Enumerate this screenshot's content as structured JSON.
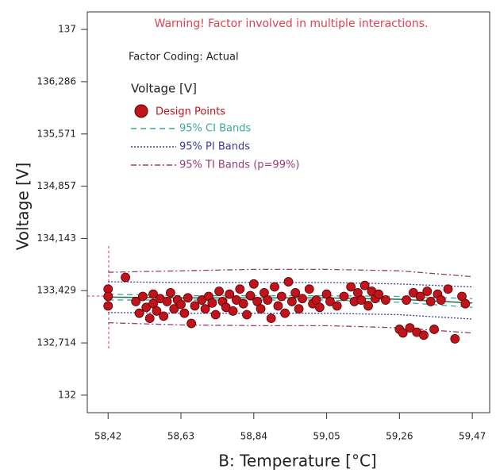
{
  "chart_data": {
    "type": "scatter",
    "warning": "Warning! Factor involved in multiple interactions.",
    "coding": "Factor Coding: Actual",
    "legend_title": "Voltage [V]",
    "x_label": "B: Temperature [°C]",
    "y_label": "Voltage [V]",
    "xlim": [
      58.36,
      59.52
    ],
    "ylim": [
      131.76,
      137.24
    ],
    "xticks": [
      {
        "value": 58.42,
        "label": "58,42"
      },
      {
        "value": 58.63,
        "label": "58,63"
      },
      {
        "value": 58.84,
        "label": "58,84"
      },
      {
        "value": 59.05,
        "label": "59,05"
      },
      {
        "value": 59.26,
        "label": "59,26"
      },
      {
        "value": 59.47,
        "label": "59,47"
      }
    ],
    "yticks": [
      132,
      {
        "value": 132.714,
        "label": "132,714"
      },
      {
        "value": 133.429,
        "label": "133,429"
      },
      {
        "value": 134.143,
        "label": "134,143"
      },
      {
        "value": 134.857,
        "label": "134,857"
      },
      {
        "value": 135.571,
        "label": "135,571"
      },
      {
        "value": 136.286,
        "label": "136,286"
      },
      137
    ],
    "points": {
      "name": "Design Points",
      "color": "#c0141c",
      "x": [
        58.42,
        58.42,
        58.42,
        58.47,
        58.5,
        58.51,
        58.52,
        58.53,
        58.54,
        58.55,
        58.55,
        58.56,
        58.57,
        58.58,
        58.59,
        58.6,
        58.61,
        58.62,
        58.63,
        58.64,
        58.65,
        58.66,
        58.67,
        58.69,
        58.7,
        58.71,
        58.72,
        58.73,
        58.74,
        58.75,
        58.76,
        58.77,
        58.78,
        58.79,
        58.8,
        58.81,
        58.82,
        58.83,
        58.84,
        58.85,
        58.86,
        58.87,
        58.88,
        58.89,
        58.9,
        58.91,
        58.92,
        58.93,
        58.94,
        58.95,
        58.96,
        58.97,
        58.98,
        59.0,
        59.01,
        59.02,
        59.03,
        59.05,
        59.06,
        59.08,
        59.1,
        59.12,
        59.13,
        59.14,
        59.15,
        59.16,
        59.17,
        59.18,
        59.19,
        59.2,
        59.22,
        59.26,
        59.27,
        59.28,
        59.29,
        59.3,
        59.31,
        59.32,
        59.33,
        59.34,
        59.35,
        59.36,
        59.37,
        59.38,
        59.4,
        59.42,
        59.44,
        59.45
      ],
      "y": [
        133.45,
        133.35,
        133.22,
        133.61,
        133.28,
        133.12,
        133.35,
        133.2,
        133.05,
        133.38,
        133.25,
        133.15,
        133.32,
        133.08,
        133.28,
        133.4,
        133.18,
        133.3,
        133.24,
        133.12,
        133.33,
        132.98,
        133.22,
        133.3,
        133.18,
        133.35,
        133.26,
        133.1,
        133.42,
        133.28,
        133.2,
        133.38,
        133.15,
        133.3,
        133.45,
        133.25,
        133.1,
        133.36,
        133.52,
        133.28,
        133.18,
        133.4,
        133.3,
        133.05,
        133.48,
        133.22,
        133.35,
        133.12,
        133.55,
        133.28,
        133.4,
        133.18,
        133.32,
        133.45,
        133.25,
        133.3,
        133.2,
        133.38,
        133.28,
        133.22,
        133.35,
        133.48,
        133.28,
        133.4,
        133.3,
        133.5,
        133.22,
        133.42,
        133.32,
        133.38,
        133.3,
        132.9,
        132.85,
        133.3,
        132.92,
        133.4,
        132.86,
        133.35,
        132.82,
        133.42,
        133.28,
        132.9,
        133.38,
        133.3,
        133.45,
        132.77,
        133.35,
        133.25
      ]
    },
    "band_x": [
      58.42,
      58.63,
      58.84,
      59.05,
      59.26,
      59.47
    ],
    "fit": {
      "color": "#2a6a4a",
      "values": [
        133.34,
        133.33,
        133.33,
        133.33,
        133.31,
        133.26
      ]
    },
    "bands": [
      {
        "name": "95% CI Bands",
        "color": "#3aa89a",
        "dash": "7 5",
        "upper": [
          133.38,
          133.36,
          133.36,
          133.36,
          133.35,
          133.32
        ],
        "lower": [
          133.3,
          133.3,
          133.3,
          133.3,
          133.27,
          133.2
        ]
      },
      {
        "name": "95% PI Bands",
        "color": "#3b3b9e",
        "dash": "2 2",
        "upper": [
          133.55,
          133.54,
          133.54,
          133.54,
          133.52,
          133.48
        ],
        "lower": [
          133.13,
          133.12,
          133.12,
          133.12,
          133.1,
          133.04
        ]
      },
      {
        "name": "95% TI Bands (p=99%)",
        "color": "#9a3a7a",
        "dash": "7 3 2 3",
        "upper": [
          133.68,
          133.7,
          133.72,
          133.72,
          133.7,
          133.62
        ],
        "lower": [
          132.99,
          132.96,
          132.95,
          132.95,
          132.92,
          132.85
        ]
      }
    ]
  }
}
